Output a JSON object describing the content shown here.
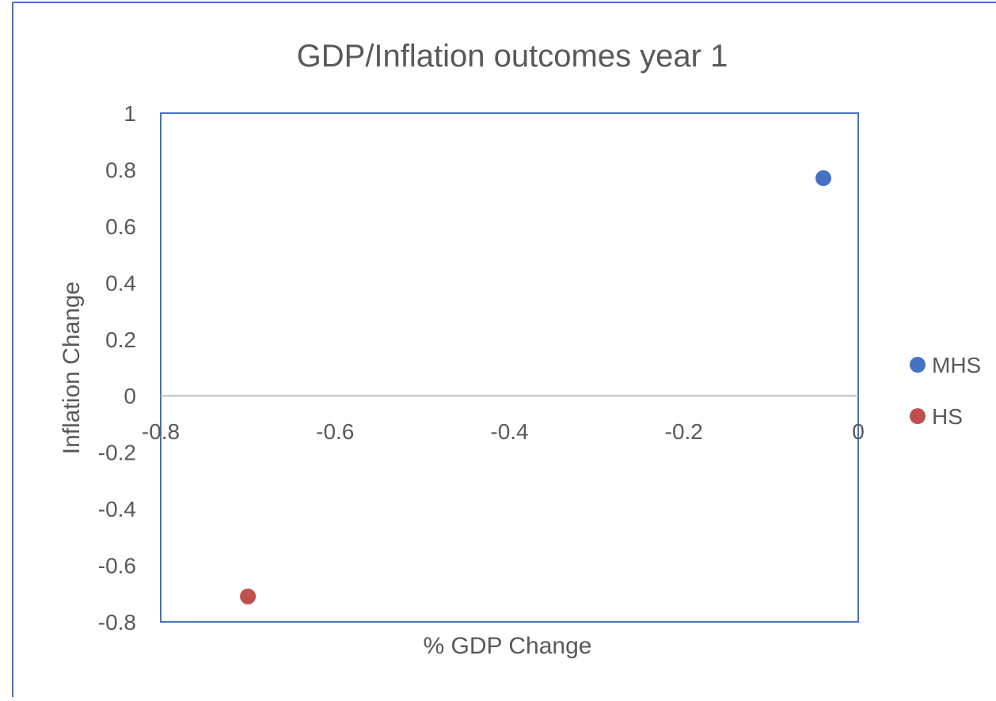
{
  "chart_data": {
    "type": "scatter",
    "title": "GDP/Inflation outcomes year 1",
    "xlabel": "% GDP Change",
    "ylabel": "Inflation Change",
    "xlim": [
      -0.8,
      0
    ],
    "ylim": [
      -0.8,
      1
    ],
    "x_ticks": [
      "-0.8",
      "-0.6",
      "-0.4",
      "-0.2",
      "0"
    ],
    "y_ticks": [
      "1",
      "0.8",
      "0.6",
      "0.4",
      "0.2",
      "0",
      "-0.2",
      "-0.4",
      "-0.6",
      "-0.8"
    ],
    "grid": false,
    "legend_position": "right",
    "series": [
      {
        "name": "MHS",
        "color": "#4472C4",
        "points": [
          {
            "x": -0.04,
            "y": 0.77
          }
        ]
      },
      {
        "name": "HS",
        "color": "#C0504D",
        "points": [
          {
            "x": -0.7,
            "y": -0.71
          }
        ]
      }
    ]
  },
  "colors": {
    "frame_border": "#4472C4",
    "plot_border": "#4472C4",
    "axis_line": "#BFBFBF",
    "text": "#595959",
    "title_text": "#595959"
  }
}
